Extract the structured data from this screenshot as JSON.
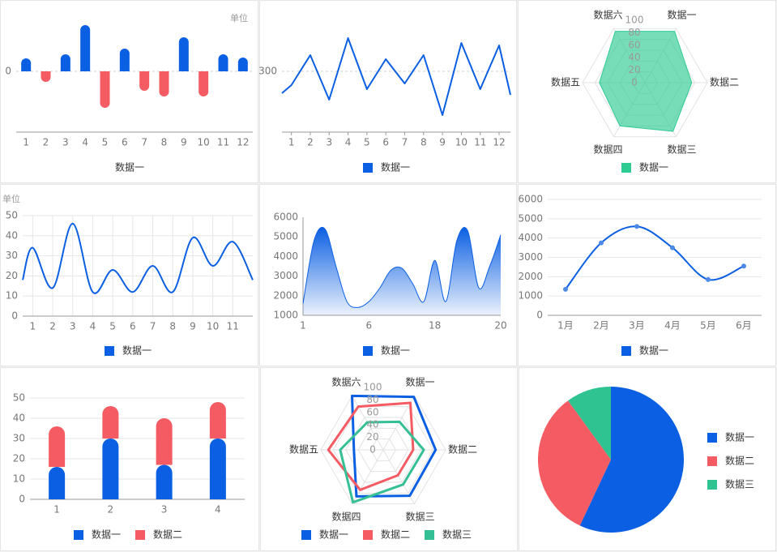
{
  "chart_data": [
    {
      "type": "bar",
      "annotation": "单位",
      "categories": [
        "1",
        "2",
        "3",
        "4",
        "5",
        "6",
        "7",
        "8",
        "9",
        "10",
        "11",
        "12"
      ],
      "series": [
        {
          "name": "数据一",
          "color": "#0b5fe3",
          "negative_color": "#f45b63",
          "values": [
            16,
            -13,
            21,
            57,
            -45,
            28,
            -24,
            -31,
            42,
            -31,
            21,
            17
          ]
        }
      ],
      "ylim": [
        -75,
        70
      ],
      "yticks": [
        0
      ],
      "grid": "y",
      "grid_dashed": true,
      "legend": "bottom",
      "legend_marker": false
    },
    {
      "type": "line",
      "x": [
        0.5,
        1,
        2,
        3,
        4,
        5,
        6,
        7,
        8,
        9,
        10,
        11,
        12,
        12.6
      ],
      "xlim": [
        0.5,
        12.6
      ],
      "xticks": [
        1,
        2,
        3,
        4,
        5,
        6,
        7,
        8,
        9,
        10,
        11,
        12
      ],
      "series": [
        {
          "name": "数据一",
          "color": "#0b5fe3",
          "values": [
            273,
            283,
            320,
            265,
            341,
            278,
            315,
            285,
            320,
            246,
            335,
            278,
            332,
            271
          ]
        }
      ],
      "ylim": [
        225,
        363
      ],
      "yticks": [
        300
      ],
      "grid": "y",
      "grid_dashed": true,
      "legend": "bottom"
    },
    {
      "type": "radar",
      "indicators": [
        "数据一",
        "数据二",
        "数据三",
        "数据四",
        "数据五",
        "数据六"
      ],
      "rlim": [
        0,
        100
      ],
      "rticks": [
        0,
        20,
        40,
        60,
        80,
        100
      ],
      "series": [
        {
          "name": "数据一",
          "color": "#2ecb92",
          "fill": true,
          "values": [
            95,
            75,
            90,
            80,
            73,
            95
          ]
        }
      ],
      "legend": "bottom"
    },
    {
      "type": "line",
      "smooth": true,
      "annotation": "单位",
      "x": [
        0.5,
        1,
        2,
        3,
        4,
        5,
        6,
        7,
        8,
        9,
        10,
        11,
        12
      ],
      "xlim": [
        0.5,
        12
      ],
      "xticks": [
        1,
        2,
        3,
        4,
        5,
        6,
        7,
        8,
        9,
        10,
        11
      ],
      "series": [
        {
          "name": "数据一",
          "color": "#0b5fe3",
          "values": [
            18,
            34,
            14,
            46,
            12,
            23,
            12,
            25,
            12,
            39,
            25,
            37,
            18
          ]
        }
      ],
      "ylim": [
        0,
        50
      ],
      "yticks": [
        0,
        10,
        20,
        30,
        40,
        50
      ],
      "grid": "both",
      "legend": "bottom"
    },
    {
      "type": "area",
      "smooth": true,
      "boundary_gap": false,
      "categories": [
        "1",
        null,
        null,
        null,
        null,
        null,
        "6",
        null,
        null,
        null,
        null,
        null,
        "18",
        null,
        null,
        null,
        null,
        null,
        "20"
      ],
      "series": [
        {
          "name": "数据一",
          "color": "#0b5fe3",
          "values": [
            1600,
            4800,
            5400,
            3500,
            1700,
            1400,
            1700,
            2400,
            3300,
            3400,
            2600,
            1700,
            3800,
            1700,
            4800,
            5300,
            2400,
            3500,
            5100
          ]
        }
      ],
      "ylim": [
        1000,
        6000
      ],
      "yticks": [
        1000,
        2000,
        3000,
        4000,
        5000,
        6000
      ],
      "grid": false,
      "y_axis_line": true,
      "legend": "bottom"
    },
    {
      "type": "line",
      "smooth": true,
      "markers": true,
      "categories": [
        "1月",
        "2月",
        "3月",
        "4月",
        "5月",
        "6月"
      ],
      "series": [
        {
          "name": "数据一",
          "color": "#0b5fe3",
          "values": [
            1350,
            3750,
            4600,
            3500,
            1850,
            2550
          ]
        }
      ],
      "ylim": [
        0,
        6000
      ],
      "yticks": [
        0,
        1000,
        2000,
        3000,
        4000,
        5000,
        6000
      ],
      "grid": "y",
      "legend": "bottom"
    },
    {
      "type": "bar",
      "stacked": true,
      "categories": [
        "1",
        "2",
        "3",
        "4"
      ],
      "series": [
        {
          "name": "数据一",
          "color": "#0b5fe3",
          "values": [
            16,
            30,
            17,
            30
          ]
        },
        {
          "name": "数据二",
          "color": "#f45b63",
          "values": [
            20,
            16,
            23,
            18
          ]
        }
      ],
      "ylim": [
        0,
        50
      ],
      "yticks": [
        0,
        10,
        20,
        30,
        40,
        50
      ],
      "grid": "y",
      "legend": "bottom"
    },
    {
      "type": "radar",
      "indicators": [
        "数据一",
        "数据二",
        "数据三",
        "数据四",
        "数据五",
        "数据六"
      ],
      "rlim": [
        0,
        100
      ],
      "rticks": [
        0,
        20,
        40,
        60,
        80,
        100
      ],
      "series": [
        {
          "name": "数据一",
          "color": "#0b5fe3",
          "values": [
            98,
            84,
            85,
            86,
            47,
            100
          ]
        },
        {
          "name": "数据二",
          "color": "#f45b63",
          "values": [
            87,
            48,
            47,
            74,
            88,
            80
          ]
        },
        {
          "name": "数据三",
          "color": "#35bf95",
          "values": [
            52,
            65,
            64,
            97,
            69,
            51
          ]
        }
      ],
      "legend": "bottom"
    },
    {
      "type": "pie",
      "categories": [
        "数据一",
        "数据二",
        "数据三"
      ],
      "values": [
        57,
        33,
        10
      ],
      "colors": [
        "#0b5fe3",
        "#f45b63",
        "#2ec391"
      ],
      "legend": "right"
    }
  ]
}
